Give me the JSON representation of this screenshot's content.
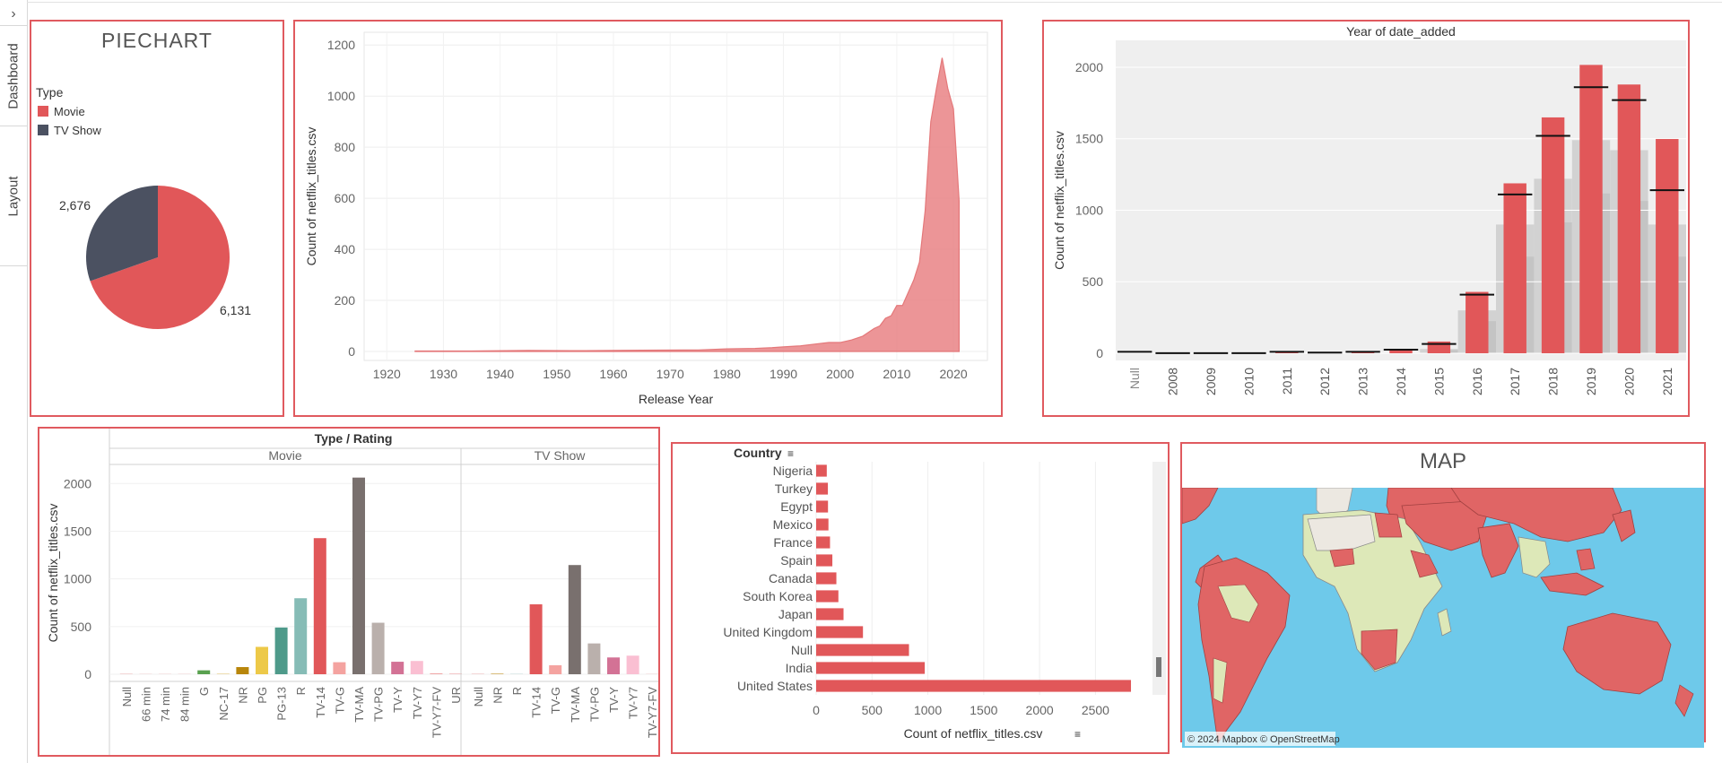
{
  "sidebar": {
    "toggle_glyph": "›",
    "tabs": [
      "Dashboard",
      "Layout"
    ]
  },
  "colors": {
    "movie": "#e15759",
    "tv_show": "#4b5161",
    "water": "#6ec9ea",
    "land_red": "#e06565",
    "land_green": "#dde8b8",
    "land_grey": "#ece8e1"
  },
  "piechart": {
    "title": "PIECHART",
    "legend_title": "Type",
    "legend_items": [
      "Movie",
      "TV Show"
    ],
    "chart_data": {
      "type": "pie",
      "labels": [
        "Movie",
        "TV Show"
      ],
      "values": [
        6131,
        2676
      ],
      "value_labels": [
        "6,131",
        "2,676"
      ]
    }
  },
  "area": {
    "chart_data": {
      "type": "area",
      "title": "",
      "xlabel": "Release Year",
      "ylabel": "Count of netflix_titles.csv",
      "xlim": [
        1925,
        2021
      ],
      "ylim": [
        0,
        1250
      ],
      "xticks": [
        "1920",
        "1930",
        "1940",
        "1950",
        "1960",
        "1970",
        "1980",
        "1990",
        "2000",
        "2010",
        "2020"
      ],
      "yticks": [
        "0",
        "200",
        "400",
        "600",
        "800",
        "1000",
        "1200"
      ],
      "x": [
        1925,
        1935,
        1945,
        1955,
        1965,
        1975,
        1980,
        1985,
        1988,
        1990,
        1993,
        1996,
        1998,
        2000,
        2002,
        2004,
        2006,
        2007,
        2008,
        2009,
        2010,
        2011,
        2012,
        2013,
        2014,
        2015,
        2016,
        2017,
        2018,
        2019,
        2020,
        2021
      ],
      "y": [
        2,
        2,
        4,
        3,
        5,
        6,
        10,
        12,
        15,
        18,
        22,
        30,
        35,
        35,
        45,
        60,
        90,
        100,
        130,
        140,
        180,
        180,
        230,
        280,
        350,
        550,
        900,
        1030,
        1150,
        1030,
        950,
        590
      ]
    }
  },
  "year_added": {
    "chart_data": {
      "type": "bar",
      "title": "Year of date_added",
      "ylabel": "Count of netflix_titles.csv",
      "ylim": [
        0,
        2100
      ],
      "yticks": [
        "0",
        "500",
        "1000",
        "1500",
        "2000"
      ],
      "categories": [
        "Null",
        "2008",
        "2009",
        "2010",
        "2011",
        "2012",
        "2013",
        "2014",
        "2015",
        "2016",
        "2017",
        "2018",
        "2019",
        "2020",
        "2021"
      ],
      "values": [
        0,
        2,
        2,
        1,
        13,
        3,
        11,
        24,
        82,
        429,
        1188,
        1649,
        2016,
        1879,
        1498
      ],
      "reference_values": [
        10,
        1,
        1,
        1,
        10,
        5,
        10,
        25,
        65,
        410,
        1110,
        1520,
        1860,
        1770,
        1140
      ]
    }
  },
  "type_rating": {
    "chart_data": {
      "type": "bar",
      "title": "Type / Rating",
      "ylabel": "Count of netflix_titles.csv",
      "ylim": [
        0,
        2200
      ],
      "yticks": [
        "0",
        "500",
        "1000",
        "1500",
        "2000"
      ],
      "groups": [
        {
          "name": "Movie",
          "categories": [
            "Null",
            "66 min",
            "74 min",
            "84 min",
            "G",
            "NC-17",
            "NR",
            "PG",
            "PG-13",
            "R",
            "TV-14",
            "TV-G",
            "TV-MA",
            "TV-PG",
            "TV-Y",
            "TV-Y7",
            "TV-Y7-FV",
            "UR"
          ],
          "values": [
            2,
            1,
            1,
            1,
            41,
            3,
            75,
            287,
            490,
            797,
            1427,
            126,
            2062,
            540,
            131,
            139,
            5,
            3
          ],
          "colors": [
            "#e15759",
            "#e15759",
            "#e15759",
            "#e15759",
            "#59a14f",
            "#d4a017",
            "#b8860b",
            "#edc948",
            "#4e9a8a",
            "#86bcb6",
            "#e15759",
            "#f4a3a0",
            "#79706e",
            "#bab0ac",
            "#d37295",
            "#fabfd2",
            "#e15759",
            "#e15759"
          ]
        },
        {
          "name": "TV Show",
          "categories": [
            "Null",
            "NR",
            "R",
            "TV-14",
            "TV-G",
            "TV-MA",
            "TV-PG",
            "TV-Y",
            "TV-Y7",
            "TV-Y7-FV"
          ],
          "values": [
            2,
            5,
            2,
            733,
            94,
            1145,
            323,
            176,
            195,
            1
          ],
          "colors": [
            "#e15759",
            "#b8860b",
            "#86bcb6",
            "#e15759",
            "#f4a3a0",
            "#79706e",
            "#bab0ac",
            "#d37295",
            "#fabfd2",
            "#e15759"
          ]
        }
      ]
    }
  },
  "country": {
    "chart_data": {
      "type": "bar",
      "orientation": "horizontal",
      "title": "Country",
      "xlabel": "Count of netflix_titles.csv",
      "xlim": [
        0,
        2850
      ],
      "xticks": [
        "0",
        "500",
        "1000",
        "1500",
        "2000",
        "2500"
      ],
      "categories": [
        "Nigeria",
        "Turkey",
        "Egypt",
        "Mexico",
        "France",
        "Spain",
        "Canada",
        "South Korea",
        "Japan",
        "United Kingdom",
        "Null",
        "India",
        "United States"
      ],
      "values": [
        95,
        105,
        106,
        110,
        124,
        145,
        181,
        199,
        245,
        419,
        831,
        972,
        2818
      ]
    }
  },
  "map": {
    "title": "MAP",
    "attribution": "© 2024 Mapbox © OpenStreetMap"
  }
}
